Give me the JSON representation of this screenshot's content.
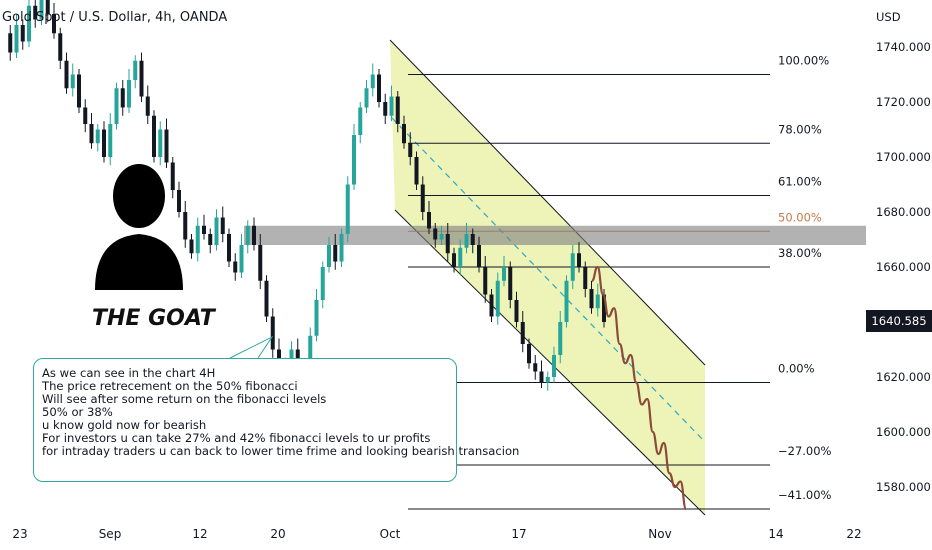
{
  "header": {
    "title": "Gold Spot / U.S. Dollar, 4h, OANDA"
  },
  "axis": {
    "currency": "USD",
    "last_price": "1640.585",
    "y_ticks": [
      "1740.000",
      "1720.000",
      "1700.000",
      "1680.000",
      "1660.000",
      "1640.000",
      "1620.000",
      "1600.000",
      "1580.000"
    ],
    "x_ticks": [
      "23",
      "Sep",
      "12",
      "20",
      "Oct",
      "17",
      "Nov",
      "14",
      "22"
    ]
  },
  "annotation": {
    "figure_label": "THE GOAT",
    "note_lines": [
      "As we can see in the chart 4H",
      "The price retrecement on the 50% fibonacci",
      "Will see after some return on the fibonacci levels",
      "50% or 38%",
      "u know gold now for bearish",
      "For investors u can take 27% and 42% fibonacci levels to ur profits",
      "for intraday traders u can back to lower time frime and looking bearish transacion"
    ]
  },
  "colors": {
    "up": "#26a69a",
    "down": "#131722",
    "channel_fill": "#e8f0a0",
    "forecast": "#8b4a3a",
    "zone": "#7f7f7f",
    "fib_50": "#c77a4a"
  },
  "chart_data": {
    "type": "candlestick",
    "title": "Gold Spot / U.S. Dollar, 4h, OANDA",
    "ylabel": "USD",
    "ylim": [
      1570,
      1760
    ],
    "last_price": 1640.585,
    "fibonacci": [
      {
        "label": "100.00%",
        "price": 1730
      },
      {
        "label": "78.00%",
        "price": 1705
      },
      {
        "label": "61.00%",
        "price": 1686
      },
      {
        "label": "50.00%",
        "price": 1673
      },
      {
        "label": "38.00%",
        "price": 1660
      },
      {
        "label": "0.00%",
        "price": 1618
      },
      {
        "label": "−27.00%",
        "price": 1588
      },
      {
        "label": "−41.00%",
        "price": 1572
      }
    ],
    "resistance_zone": [
      1668,
      1675
    ],
    "price_path": [
      1745,
      1738,
      1748,
      1742,
      1755,
      1750,
      1760,
      1752,
      1745,
      1735,
      1725,
      1730,
      1718,
      1712,
      1705,
      1710,
      1700,
      1712,
      1725,
      1718,
      1728,
      1735,
      1722,
      1715,
      1700,
      1710,
      1698,
      1688,
      1680,
      1670,
      1665,
      1675,
      1672,
      1668,
      1678,
      1672,
      1662,
      1658,
      1668,
      1675,
      1668,
      1655,
      1642,
      1630,
      1625,
      1622,
      1630,
      1618,
      1620,
      1635,
      1648,
      1660,
      1668,
      1662,
      1672,
      1690,
      1708,
      1718,
      1725,
      1730,
      1720,
      1715,
      1722,
      1712,
      1705,
      1700,
      1690,
      1680,
      1674,
      1670,
      1672,
      1665,
      1660,
      1667,
      1672,
      1668,
      1660,
      1650,
      1642,
      1655,
      1660,
      1648,
      1640,
      1632,
      1625,
      1622,
      1618,
      1620,
      1628,
      1640,
      1655,
      1665,
      1660,
      1652,
      1645,
      1650,
      1640
    ],
    "forecast_path": [
      1655,
      1660,
      1650,
      1642,
      1645,
      1632,
      1625,
      1628,
      1618,
      1610,
      1612,
      1600,
      1592,
      1596,
      1585,
      1580,
      1582,
      1572
    ]
  }
}
